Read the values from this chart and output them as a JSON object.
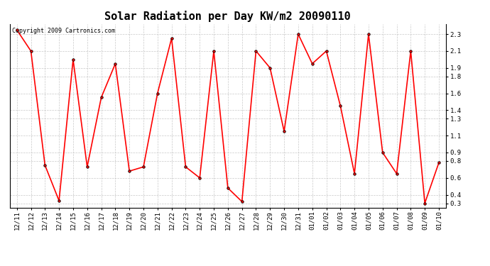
{
  "title": "Solar Radiation per Day KW/m2 20090110",
  "copyright": "Copyright 2009 Cartronics.com",
  "dates": [
    "12/11",
    "12/12",
    "12/13",
    "12/14",
    "12/15",
    "12/16",
    "12/17",
    "12/18",
    "12/19",
    "12/20",
    "12/21",
    "12/22",
    "12/23",
    "12/24",
    "12/25",
    "12/26",
    "12/27",
    "12/28",
    "12/29",
    "12/30",
    "12/31",
    "01/01",
    "01/02",
    "01/03",
    "01/04",
    "01/05",
    "01/06",
    "01/07",
    "01/08",
    "01/09",
    "01/10"
  ],
  "values": [
    2.35,
    2.1,
    0.75,
    0.33,
    2.0,
    0.73,
    1.55,
    1.95,
    0.68,
    0.73,
    1.6,
    2.25,
    0.73,
    0.6,
    2.1,
    0.48,
    0.32,
    2.1,
    1.9,
    1.15,
    2.3,
    1.95,
    2.1,
    1.45,
    0.65,
    2.3,
    0.9,
    0.65,
    2.1,
    0.3,
    0.78
  ],
  "line_color": "#ff0000",
  "marker_color": "#000000",
  "background_color": "#ffffff",
  "grid_color": "#bbbbbb",
  "ylim": [
    0.25,
    2.42
  ],
  "yticks": [
    0.3,
    0.4,
    0.6,
    0.8,
    0.9,
    1.1,
    1.3,
    1.4,
    1.6,
    1.8,
    1.9,
    2.1,
    2.3
  ],
  "title_fontsize": 11,
  "tick_fontsize": 6.5,
  "copyright_fontsize": 6
}
